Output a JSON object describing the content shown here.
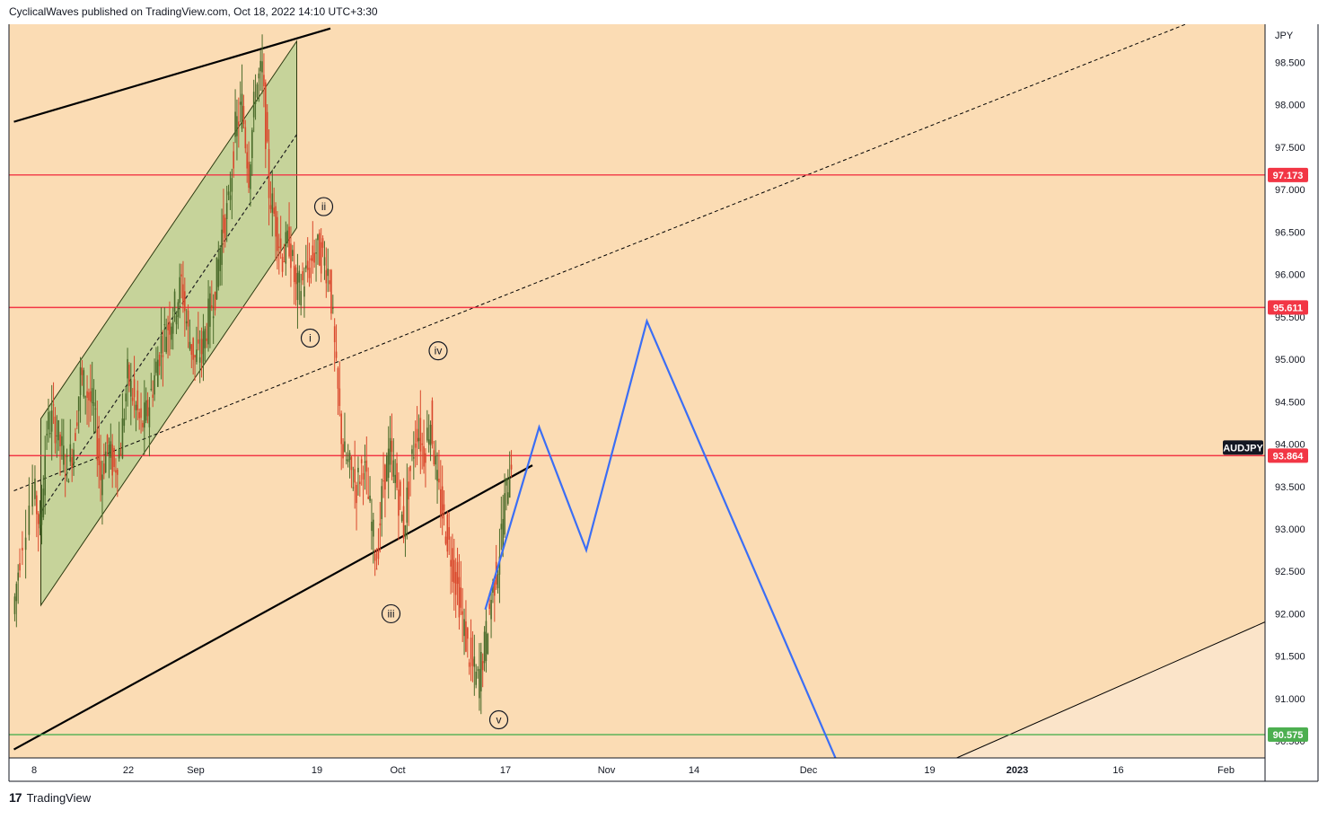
{
  "header": {
    "publisher_line": "CyclicalWaves published on TradingView.com, Oct 18, 2022 14:10 UTC+3:30"
  },
  "footer": {
    "brand": "TradingView",
    "logo_glyph": "17"
  },
  "colors": {
    "background": "#fbdcb4",
    "projection_zone": "#fbe4c9",
    "channel_fill": "#c6d39a",
    "up_candle": "#4a6b2a",
    "down_candle": "#d9472b",
    "horizontal_line": "#f23645",
    "support_line": "#4caf50",
    "projection_path": "#3b6ef5",
    "trend_line": "#000000"
  },
  "chart_data": {
    "type": "line",
    "symbol": "AUDJPY",
    "currency_label": "JPY",
    "ylim": [
      90.3,
      98.95
    ],
    "y_ticks": [
      "98.500",
      "98.000",
      "97.500",
      "97.000",
      "96.500",
      "96.000",
      "95.500",
      "95.000",
      "94.500",
      "94.000",
      "93.500",
      "93.000",
      "92.500",
      "92.000",
      "91.500",
      "91.000",
      "90.500"
    ],
    "x_ticks": [
      {
        "label": "8",
        "date": "2022-08-08"
      },
      {
        "label": "22",
        "date": "2022-08-22"
      },
      {
        "label": "Sep",
        "date": "2022-09-01"
      },
      {
        "label": "19",
        "date": "2022-09-19"
      },
      {
        "label": "Oct",
        "date": "2022-10-01"
      },
      {
        "label": "17",
        "date": "2022-10-17"
      },
      {
        "label": "Nov",
        "date": "2022-11-01"
      },
      {
        "label": "14",
        "date": "2022-11-14"
      },
      {
        "label": "Dec",
        "date": "2022-12-01"
      },
      {
        "label": "19",
        "date": "2022-12-19"
      },
      {
        "label": "2023",
        "date": "2023-01-01",
        "bold": true
      },
      {
        "label": "16",
        "date": "2023-01-16"
      },
      {
        "label": "Feb",
        "date": "2023-02-01"
      }
    ],
    "price_levels": [
      {
        "value": 97.173,
        "label": "97.173",
        "kind": "resistance"
      },
      {
        "value": 95.611,
        "label": "95.611",
        "kind": "resistance"
      },
      {
        "value": 93.864,
        "label": "93.864",
        "kind": "current",
        "tag": "AUDJPY"
      },
      {
        "value": 90.575,
        "label": "90.575",
        "kind": "support"
      }
    ],
    "series": [
      {
        "type": "candles-approx",
        "points": [
          [
            "2022-08-05",
            92.0
          ],
          [
            "2022-08-06",
            92.7
          ],
          [
            "2022-08-08",
            93.5
          ],
          [
            "2022-08-09",
            93.0
          ],
          [
            "2022-08-10",
            94.2
          ],
          [
            "2022-08-11",
            94.3
          ],
          [
            "2022-08-12",
            94.0
          ],
          [
            "2022-08-13",
            93.7
          ],
          [
            "2022-08-14",
            94.0
          ],
          [
            "2022-08-15",
            94.8
          ],
          [
            "2022-08-16",
            94.6
          ],
          [
            "2022-08-17",
            94.4
          ],
          [
            "2022-08-18",
            93.6
          ],
          [
            "2022-08-19",
            94.0
          ],
          [
            "2022-08-20",
            93.7
          ],
          [
            "2022-08-21",
            94.0
          ],
          [
            "2022-08-22",
            94.8
          ],
          [
            "2022-08-23",
            94.5
          ],
          [
            "2022-08-24",
            94.2
          ],
          [
            "2022-08-25",
            94.4
          ],
          [
            "2022-08-26",
            94.8
          ],
          [
            "2022-08-27",
            95.2
          ],
          [
            "2022-08-28",
            95.4
          ],
          [
            "2022-08-29",
            95.6
          ],
          [
            "2022-08-30",
            95.9
          ],
          [
            "2022-08-31",
            95.3
          ],
          [
            "2022-09-01",
            95.0
          ],
          [
            "2022-09-02",
            95.1
          ],
          [
            "2022-09-03",
            95.5
          ],
          [
            "2022-09-04",
            95.8
          ],
          [
            "2022-09-05",
            96.5
          ],
          [
            "2022-09-06",
            96.8
          ],
          [
            "2022-09-07",
            97.7
          ],
          [
            "2022-09-08",
            98.0
          ],
          [
            "2022-09-09",
            97.2
          ],
          [
            "2022-09-10",
            98.2
          ],
          [
            "2022-09-11",
            98.4
          ],
          [
            "2022-09-12",
            97.0
          ],
          [
            "2022-09-13",
            96.6
          ],
          [
            "2022-09-14",
            96.2
          ],
          [
            "2022-09-15",
            96.4
          ],
          [
            "2022-09-16",
            95.8
          ],
          [
            "2022-09-17",
            95.9
          ],
          [
            "2022-09-18",
            96.1
          ],
          [
            "2022-09-19",
            96.3
          ],
          [
            "2022-09-20",
            96.2
          ],
          [
            "2022-09-21",
            96.0
          ],
          [
            "2022-09-22",
            94.8
          ],
          [
            "2022-09-23",
            93.9
          ],
          [
            "2022-09-24",
            93.7
          ],
          [
            "2022-09-25",
            93.5
          ],
          [
            "2022-09-26",
            93.8
          ],
          [
            "2022-09-27",
            93.2
          ],
          [
            "2022-09-28",
            92.6
          ],
          [
            "2022-09-29",
            93.6
          ],
          [
            "2022-09-30",
            93.9
          ],
          [
            "2022-10-01",
            93.5
          ],
          [
            "2022-10-02",
            93.0
          ],
          [
            "2022-10-03",
            93.7
          ],
          [
            "2022-10-04",
            94.2
          ],
          [
            "2022-10-05",
            93.9
          ],
          [
            "2022-10-06",
            94.3
          ],
          [
            "2022-10-07",
            93.5
          ],
          [
            "2022-10-08",
            93.1
          ],
          [
            "2022-10-09",
            92.7
          ],
          [
            "2022-10-10",
            92.3
          ],
          [
            "2022-10-11",
            91.8
          ],
          [
            "2022-10-12",
            91.4
          ],
          [
            "2022-10-13",
            91.2
          ],
          [
            "2022-10-14",
            91.6
          ],
          [
            "2022-10-15",
            92.2
          ],
          [
            "2022-10-16",
            92.6
          ],
          [
            "2022-10-17",
            93.3
          ],
          [
            "2022-10-18",
            93.86
          ]
        ]
      },
      {
        "type": "projection",
        "points": [
          [
            "2022-10-14",
            92.05
          ],
          [
            "2022-10-22",
            94.2
          ],
          [
            "2022-10-29",
            92.75
          ],
          [
            "2022-11-07",
            95.45
          ],
          [
            "2022-12-05",
            90.3
          ]
        ]
      }
    ],
    "trend_lines": [
      {
        "from": [
          "2022-08-05",
          97.8
        ],
        "to": [
          "2022-09-21",
          98.9
        ],
        "style": "solid",
        "weight": "thick"
      },
      {
        "from": [
          "2022-08-05",
          90.4
        ],
        "to": [
          "2022-10-21",
          93.75
        ],
        "style": "solid",
        "weight": "thick"
      },
      {
        "from": [
          "2022-08-05",
          93.45
        ],
        "to": [
          "2023-01-26",
          98.95
        ],
        "style": "dashed",
        "weight": "thin"
      },
      {
        "from": [
          "2022-12-23",
          90.3
        ],
        "to": [
          "2023-02-21",
          92.4
        ],
        "style": "solid",
        "weight": "thin"
      }
    ],
    "channel": {
      "upper": [
        [
          "2022-08-09",
          94.3
        ],
        [
          "2022-09-16",
          98.75
        ]
      ],
      "lower": [
        [
          "2022-08-09",
          92.1
        ],
        [
          "2022-09-16",
          96.55
        ]
      ],
      "mid": [
        [
          "2022-08-09",
          93.2
        ],
        [
          "2022-09-16",
          97.65
        ]
      ]
    },
    "wave_labels": [
      {
        "text": "i",
        "date": "2022-09-18",
        "value": 95.25
      },
      {
        "text": "ii",
        "date": "2022-09-20",
        "value": 96.8
      },
      {
        "text": "iii",
        "date": "2022-09-30",
        "value": 92.0
      },
      {
        "text": "iv",
        "date": "2022-10-07",
        "value": 95.1
      },
      {
        "text": "v",
        "date": "2022-10-16",
        "value": 90.75
      }
    ]
  }
}
